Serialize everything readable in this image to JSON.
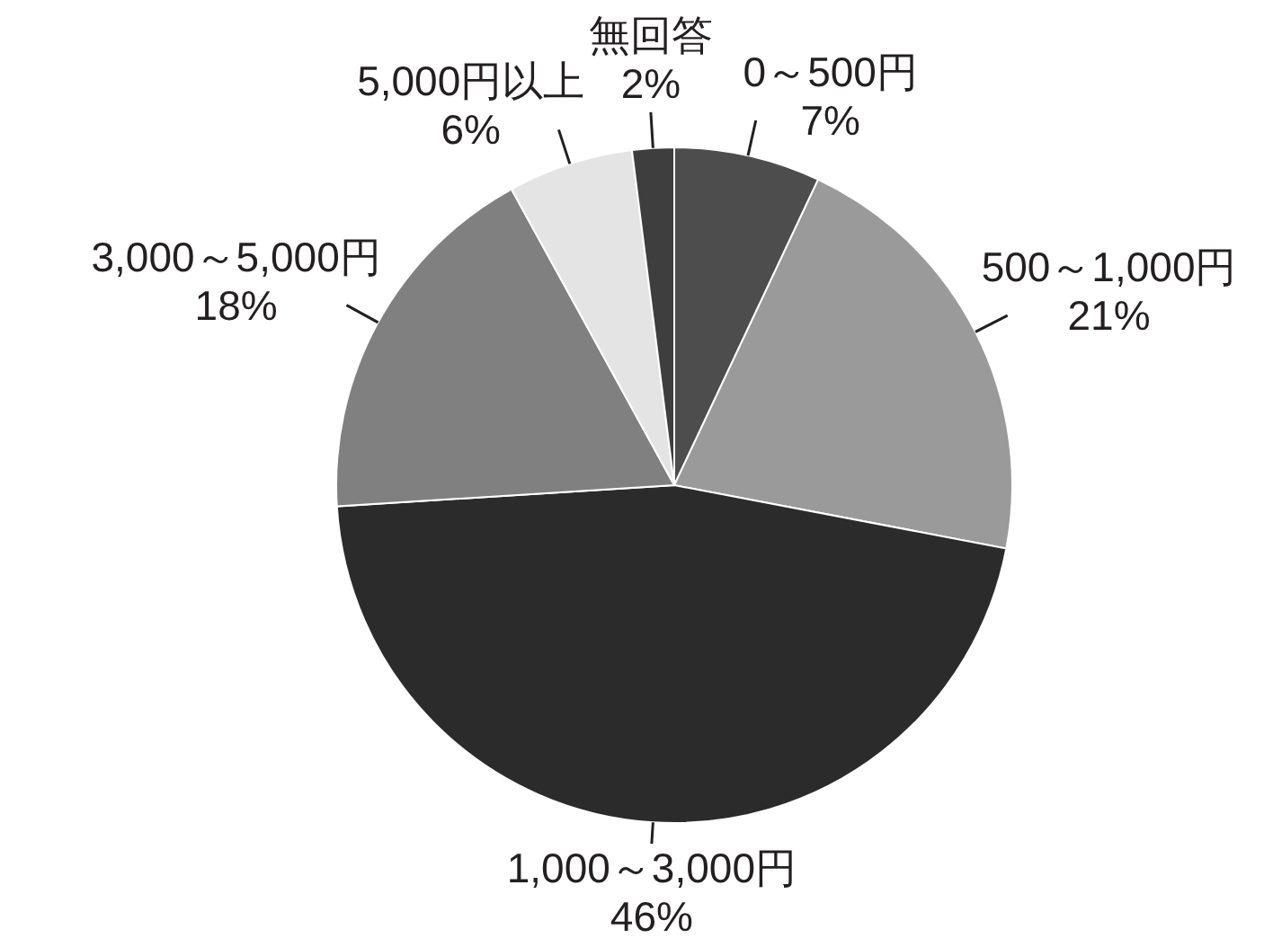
{
  "chart_data": {
    "type": "pie",
    "categories": [
      "0～500円",
      "500～1,000円",
      "1,000～3,000円",
      "3,000～5,000円",
      "5,000円以上",
      "無回答"
    ],
    "values": [
      7,
      21,
      46,
      18,
      6,
      2
    ],
    "value_labels": [
      "7%",
      "21%",
      "46%",
      "18%",
      "6%",
      "2%"
    ],
    "colors": [
      "#4d4d4d",
      "#9a9a9a",
      "#2b2b2b",
      "#808080",
      "#e4e4e4",
      "#3e3e3e"
    ]
  }
}
